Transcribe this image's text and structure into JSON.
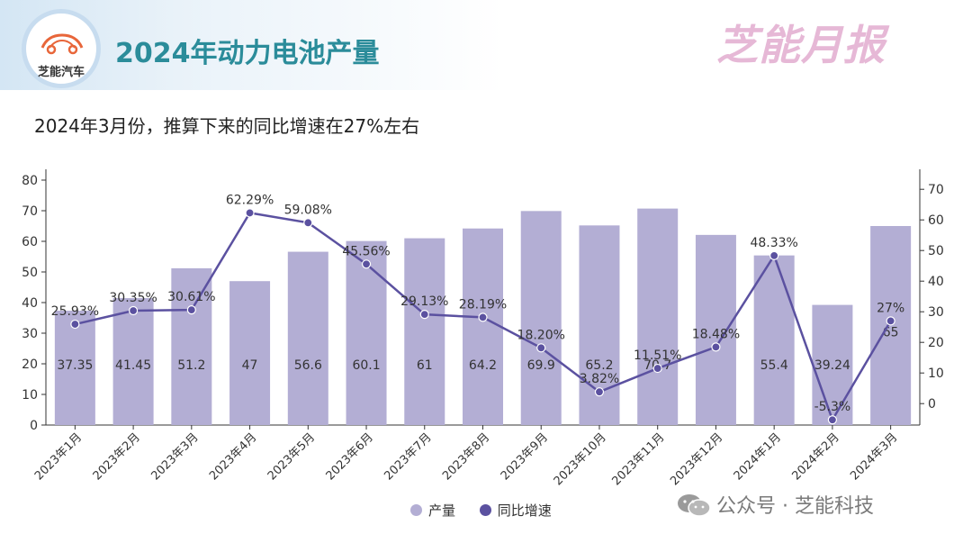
{
  "header": {
    "logo_label": "芝能汽车",
    "title": "2024年动力电池产量",
    "brand": "芝能月报"
  },
  "subtitle": "2024年3月份，推算下来的同比增速在27%左右",
  "watermark": "公众号 · 芝能科技",
  "colors": {
    "bar": "#b3aed4",
    "line": "#5b51a0",
    "title": "#2b8c9a",
    "brand": "#e6b8d6"
  },
  "chart_data": {
    "type": "bar",
    "categories": [
      "2023年1月",
      "2023年2月",
      "2023年3月",
      "2023年4月",
      "2023年5月",
      "2023年6月",
      "2023年7月",
      "2023年8月",
      "2023年9月",
      "2023年10月",
      "2023年11月",
      "2023年12月",
      "2024年1月",
      "2024年2月",
      "2024年3月"
    ],
    "series": [
      {
        "name": "产量",
        "type": "bar",
        "axis": "left",
        "values": [
          37.35,
          41.45,
          51.2,
          47,
          56.6,
          60.1,
          61,
          64.2,
          69.9,
          65.2,
          70.7,
          62.1,
          55.4,
          39.24,
          65
        ],
        "labels": [
          "37.35",
          "41.45",
          "51.2",
          "47",
          "56.6",
          "60.1",
          "61",
          "64.2",
          "69.9",
          "65.2",
          "70.7",
          "",
          "55.4",
          "39.24",
          "65"
        ]
      },
      {
        "name": "同比增速",
        "type": "line",
        "axis": "right",
        "values": [
          25.93,
          30.35,
          30.61,
          62.29,
          59.08,
          45.56,
          29.13,
          28.19,
          18.2,
          3.82,
          11.51,
          18.48,
          48.33,
          -5.3,
          27
        ],
        "labels": [
          "25.93%",
          "30.35%",
          "30.61%",
          "62.29%",
          "59.08%",
          "45.56%",
          "29.13%",
          "28.19%",
          "18.20%",
          "3.82%",
          "11.51%",
          "18.48%",
          "48.33%",
          "-5.3%",
          "27%"
        ]
      }
    ],
    "y_left": {
      "min": 0,
      "max": 80,
      "ticks": [
        0,
        10,
        20,
        30,
        40,
        50,
        60,
        70,
        80
      ]
    },
    "y_right": {
      "min": -7,
      "max": 73,
      "ticks": [
        0,
        10,
        20,
        30,
        40,
        50,
        60,
        70
      ]
    },
    "legend": [
      "产量",
      "同比增速"
    ],
    "legend_position": "bottom-center"
  }
}
